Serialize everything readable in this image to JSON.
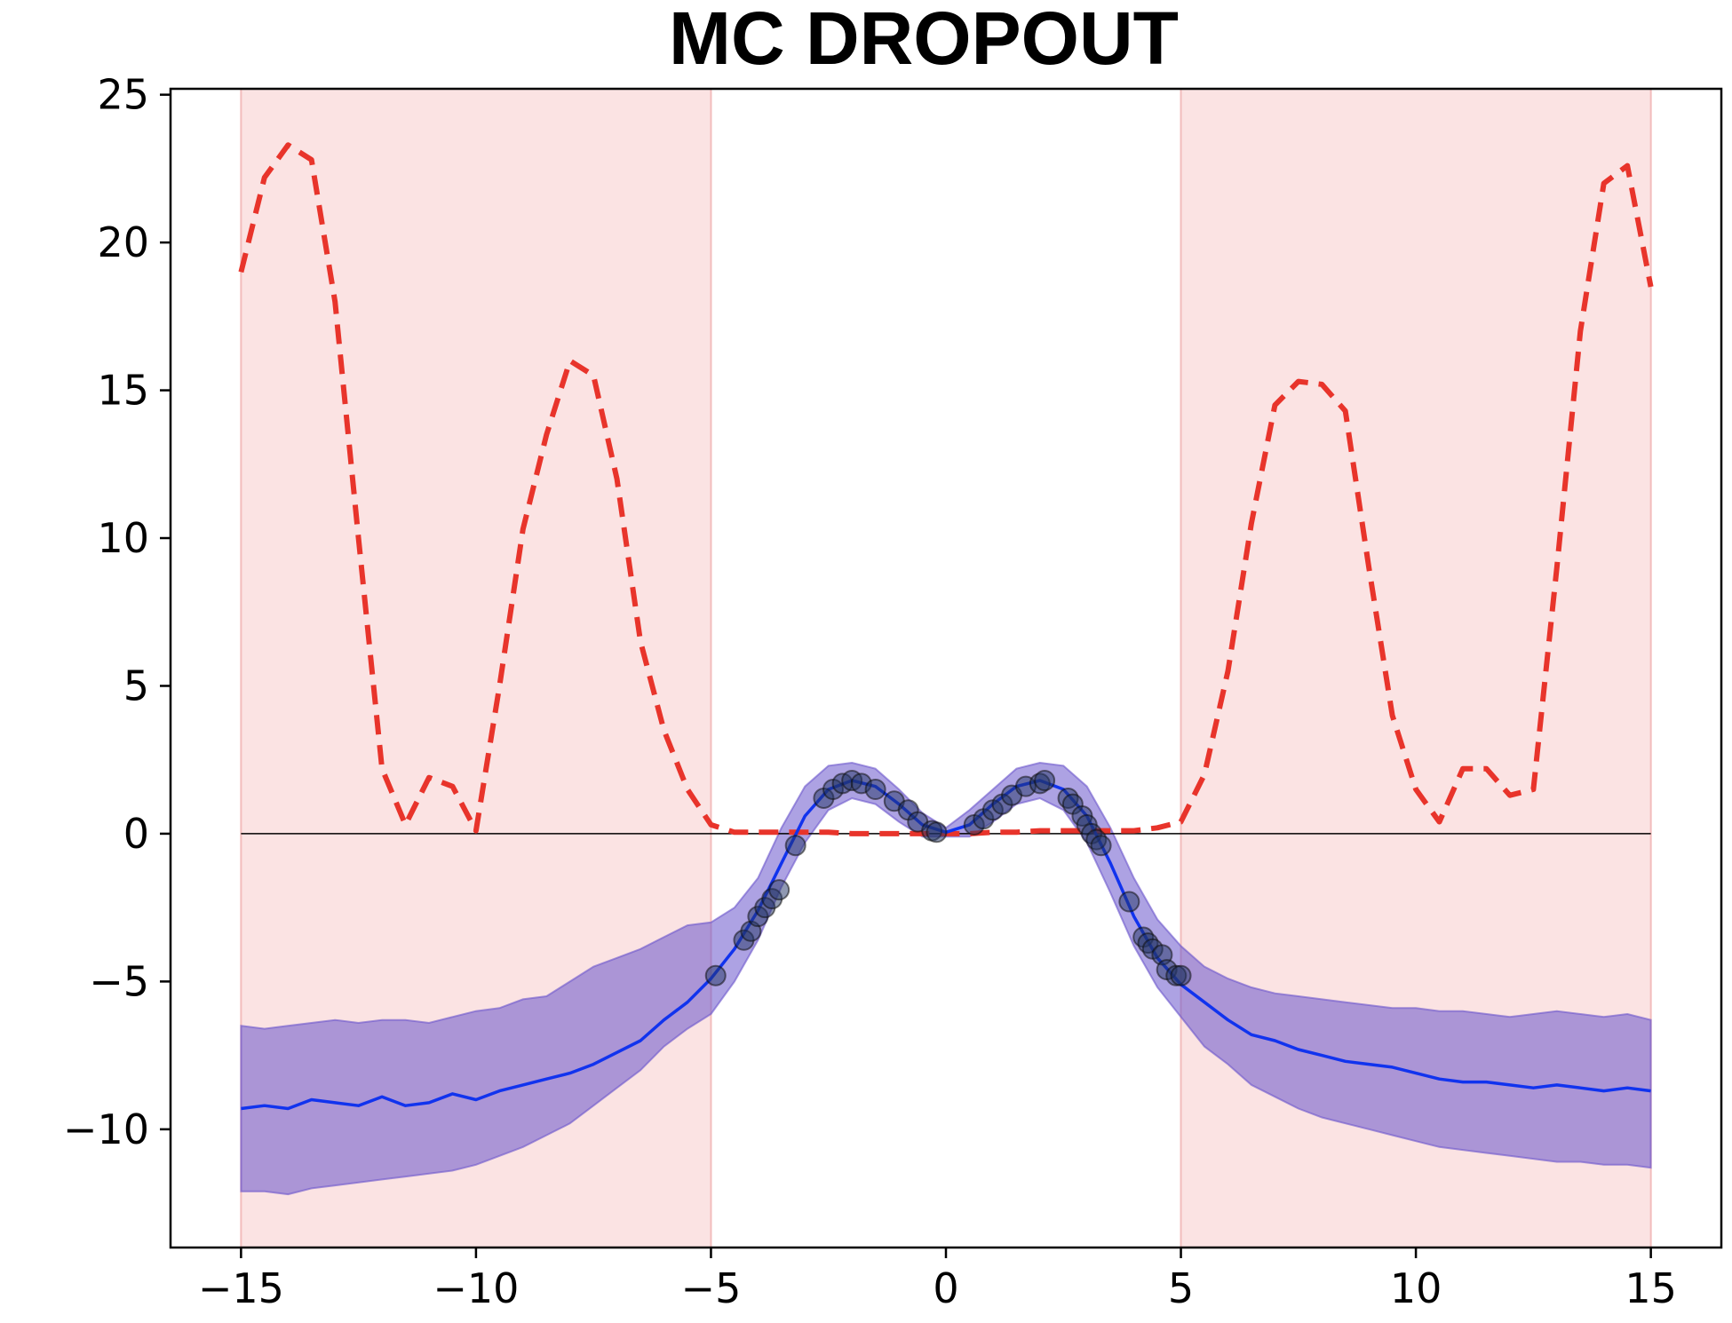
{
  "chart_data": {
    "type": "line",
    "title": "MC  DROPOUT",
    "xlim": [
      -16.5,
      16.5
    ],
    "ylim": [
      -14,
      25.2
    ],
    "x_ticks": [
      -15,
      -10,
      -5,
      0,
      5,
      10,
      15
    ],
    "x_tick_labels": [
      "−15",
      "−10",
      "−5",
      "0",
      "5",
      "10",
      "15"
    ],
    "y_ticks": [
      -10,
      -5,
      0,
      5,
      10,
      15,
      20,
      25
    ],
    "y_tick_labels": [
      "−10",
      "−5",
      "0",
      "5",
      "10",
      "15",
      "20",
      "25"
    ],
    "grid": false,
    "shaded_regions": [
      {
        "x_range": [
          -15,
          -5
        ],
        "color": "#fbe3e3"
      },
      {
        "x_range": [
          5,
          15
        ],
        "color": "#fbe3e3"
      }
    ],
    "reference_line": {
      "y": 0,
      "x_range": [
        -15,
        15
      ],
      "color": "#000000"
    },
    "colors": {
      "mean": "#1133ee",
      "band": "#6a55cc",
      "band_inner": "#7a8ff5",
      "error": "#e8342b",
      "points": "#223366"
    },
    "series": [
      {
        "kind": "dashed-line",
        "x": [
          -15,
          -14.5,
          -14,
          -13.5,
          -13,
          -12.5,
          -12,
          -11.5,
          -11,
          -10.5,
          -10,
          -9.5,
          -9,
          -8.5,
          -8,
          -7.5,
          -7,
          -6.5,
          -6,
          -5.5,
          -5,
          -4.5,
          -4,
          -3.5,
          -3,
          -2.5,
          -2,
          -1.5,
          -1,
          -0.5,
          0,
          0.5,
          1,
          1.5,
          2,
          2.5,
          3,
          3.5,
          4,
          4.5,
          5,
          5.5,
          6,
          6.5,
          7,
          7.5,
          8,
          8.5,
          9,
          9.5,
          10,
          10.5,
          11,
          11.5,
          12,
          12.5,
          13,
          13.5,
          14,
          14.5,
          15
        ],
        "y": [
          19,
          22.2,
          23.3,
          22.8,
          18,
          10,
          2.2,
          0.3,
          1.9,
          1.6,
          0.1,
          5,
          10.3,
          13.5,
          16,
          15.5,
          12,
          6.5,
          3.5,
          1.5,
          0.3,
          0.05,
          0.05,
          0.05,
          0.05,
          0.05,
          0,
          0,
          0,
          0,
          0,
          0,
          0.05,
          0.05,
          0.1,
          0.1,
          0.1,
          0.1,
          0.1,
          0.2,
          0.4,
          2,
          5.5,
          10.5,
          14.5,
          15.3,
          15.2,
          14.3,
          9,
          4,
          1.5,
          0.4,
          2.2,
          2.2,
          1.3,
          1.5,
          9,
          17,
          22,
          22.6,
          18.5
        ]
      },
      {
        "kind": "mean-line",
        "x": [
          -15,
          -14.5,
          -14,
          -13.5,
          -13,
          -12.5,
          -12,
          -11.5,
          -11,
          -10.5,
          -10,
          -9.5,
          -9,
          -8.5,
          -8,
          -7.5,
          -7,
          -6.5,
          -6,
          -5.5,
          -5,
          -4.5,
          -4,
          -3.5,
          -3,
          -2.5,
          -2,
          -1.5,
          -1,
          -0.5,
          0,
          0.5,
          1,
          1.5,
          2,
          2.5,
          3,
          3.5,
          4,
          4.5,
          5,
          5.5,
          6,
          6.5,
          7,
          7.5,
          8,
          8.5,
          9,
          9.5,
          10,
          10.5,
          11,
          11.5,
          12,
          12.5,
          13,
          13.5,
          14,
          14.5,
          15
        ],
        "y": [
          -9.3,
          -9.2,
          -9.3,
          -9,
          -9.1,
          -9.2,
          -8.9,
          -9.2,
          -9.1,
          -8.8,
          -9,
          -8.7,
          -8.5,
          -8.3,
          -8.1,
          -7.8,
          -7.4,
          -7,
          -6.3,
          -5.7,
          -4.9,
          -3.9,
          -2.6,
          -1.0,
          0.6,
          1.5,
          1.8,
          1.6,
          1.0,
          0.3,
          0.05,
          0.3,
          1.0,
          1.6,
          1.8,
          1.5,
          0.6,
          -1.0,
          -2.8,
          -4.2,
          -5.1,
          -5.7,
          -6.3,
          -6.8,
          -7.0,
          -7.3,
          -7.5,
          -7.7,
          -7.8,
          -7.9,
          -8.1,
          -8.3,
          -8.4,
          -8.4,
          -8.5,
          -8.6,
          -8.5,
          -8.6,
          -8.7,
          -8.6,
          -8.7
        ]
      },
      {
        "kind": "uncertainty-band",
        "x": [
          -15,
          -14.5,
          -14,
          -13.5,
          -13,
          -12.5,
          -12,
          -11.5,
          -11,
          -10.5,
          -10,
          -9.5,
          -9,
          -8.5,
          -8,
          -7.5,
          -7,
          -6.5,
          -6,
          -5.5,
          -5,
          -4.5,
          -4,
          -3.5,
          -3,
          -2.5,
          -2,
          -1.5,
          -1,
          -0.5,
          0,
          0.5,
          1,
          1.5,
          2,
          2.5,
          3,
          3.5,
          4,
          4.5,
          5,
          5.5,
          6,
          6.5,
          7,
          7.5,
          8,
          8.5,
          9,
          9.5,
          10,
          10.5,
          11,
          11.5,
          12,
          12.5,
          13,
          13.5,
          14,
          14.5,
          15
        ],
        "upper": [
          -6.5,
          -6.6,
          -6.5,
          -6.4,
          -6.3,
          -6.4,
          -6.3,
          -6.3,
          -6.4,
          -6.2,
          -6.0,
          -5.9,
          -5.6,
          -5.5,
          -5.0,
          -4.5,
          -4.2,
          -3.9,
          -3.5,
          -3.1,
          -3.0,
          -2.5,
          -1.5,
          0.2,
          1.6,
          2.3,
          2.4,
          2.2,
          1.5,
          0.7,
          0.2,
          0.8,
          1.5,
          2.2,
          2.4,
          2.3,
          1.6,
          0.2,
          -1.5,
          -2.9,
          -3.8,
          -4.5,
          -4.9,
          -5.2,
          -5.4,
          -5.5,
          -5.6,
          -5.7,
          -5.8,
          -5.9,
          -5.9,
          -6.0,
          -6.0,
          -6.1,
          -6.2,
          -6.1,
          -6.0,
          -6.1,
          -6.2,
          -6.1,
          -6.3
        ],
        "lower": [
          -12.1,
          -12.1,
          -12.2,
          -12.0,
          -11.9,
          -11.8,
          -11.7,
          -11.6,
          -11.5,
          -11.4,
          -11.2,
          -10.9,
          -10.6,
          -10.2,
          -9.8,
          -9.2,
          -8.6,
          -8.0,
          -7.2,
          -6.6,
          -6.1,
          -5.0,
          -3.6,
          -1.8,
          -0.3,
          0.8,
          1.2,
          1.0,
          0.4,
          -0.1,
          -0.1,
          -0.1,
          0.4,
          1.0,
          1.2,
          0.8,
          -0.3,
          -2.0,
          -3.8,
          -5.2,
          -6.2,
          -7.2,
          -7.8,
          -8.5,
          -8.9,
          -9.3,
          -9.6,
          -9.8,
          -10.0,
          -10.2,
          -10.4,
          -10.6,
          -10.7,
          -10.8,
          -10.9,
          -11.0,
          -11.1,
          -11.1,
          -11.2,
          -11.2,
          -11.3
        ]
      },
      {
        "kind": "scatter",
        "x": [
          -4.9,
          -4.3,
          -4.15,
          -4.0,
          -3.85,
          -3.7,
          -3.55,
          -3.2,
          -2.6,
          -2.4,
          -2.2,
          -2.0,
          -1.8,
          -1.5,
          -1.1,
          -0.8,
          -0.6,
          -0.3,
          -0.2,
          0.6,
          0.8,
          1.0,
          1.2,
          1.4,
          1.7,
          2.0,
          2.1,
          2.6,
          2.7,
          2.9,
          3.0,
          3.1,
          3.2,
          3.3,
          3.9,
          4.2,
          4.3,
          4.4,
          4.6,
          4.7,
          4.9,
          5.0
        ],
        "y": [
          -4.8,
          -3.6,
          -3.3,
          -2.8,
          -2.5,
          -2.2,
          -1.9,
          -0.4,
          1.2,
          1.5,
          1.7,
          1.8,
          1.7,
          1.5,
          1.1,
          0.8,
          0.4,
          0.1,
          0.05,
          0.3,
          0.5,
          0.8,
          1.0,
          1.3,
          1.6,
          1.7,
          1.8,
          1.2,
          1.0,
          0.6,
          0.3,
          0.0,
          -0.2,
          -0.4,
          -2.3,
          -3.5,
          -3.7,
          -3.9,
          -4.1,
          -4.6,
          -4.8,
          -4.8
        ]
      }
    ]
  }
}
